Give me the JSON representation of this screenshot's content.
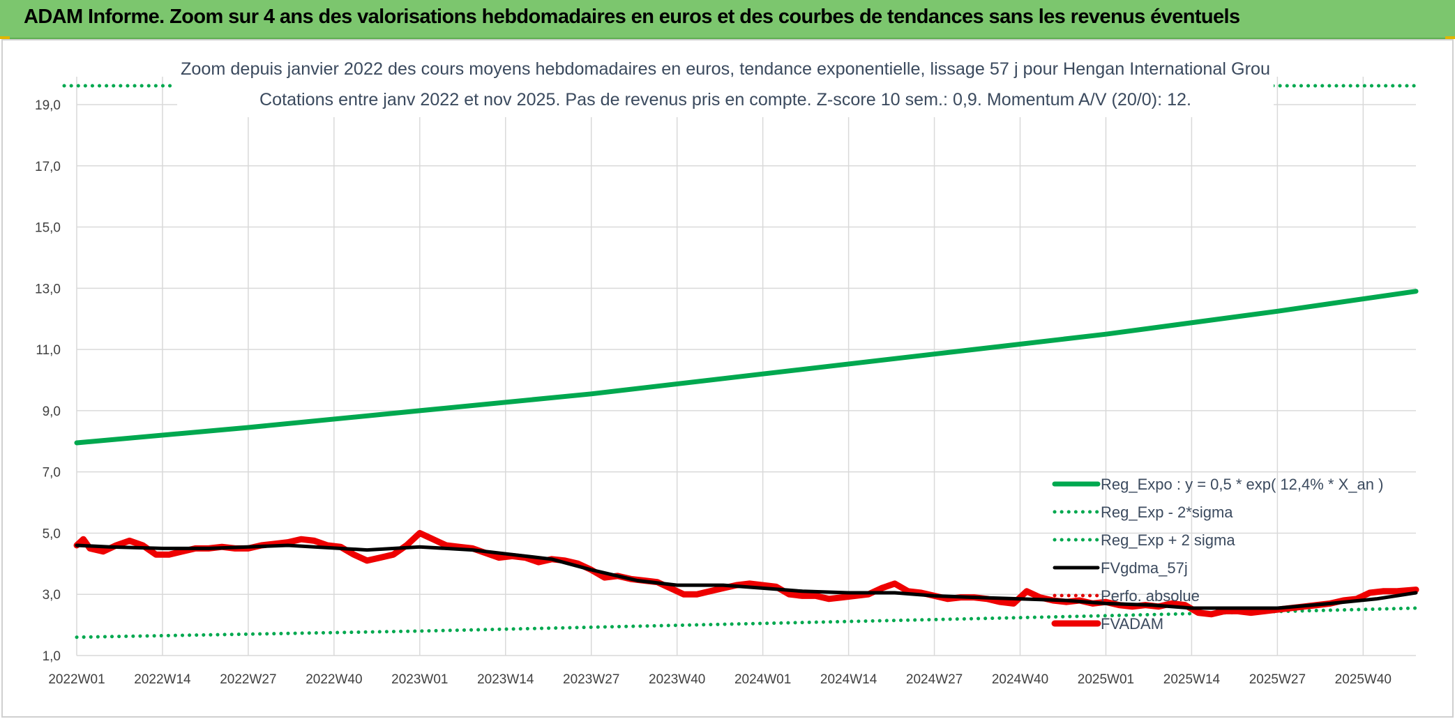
{
  "banner": {
    "title": "ADAM Informe. Zoom sur 4 ans des valorisations hebdomadaires en euros et des courbes de tendances sans les revenus éventuels"
  },
  "colors": {
    "banner_bg": "#7cc66e",
    "reg_expo": "#00a84f",
    "sigma_lines": "#00a84f",
    "fvgdma": "#000000",
    "perfo": "#e00000",
    "fvadam": "#ee0000",
    "grid": "#d9d9d9"
  },
  "chart_data": {
    "type": "line",
    "title": "Zoom depuis janvier 2022 des cours moyens hebdomadaires en euros, tendance exponentielle, lissage 57 j pour Hengan International Grou",
    "subtitle": "Cotations entre janv 2022 et nov 2025. Pas de revenus pris en compte. Z-score 10 sem.: 0,9. Momentum A/V (20/0): 12.",
    "xlabel": "",
    "ylabel": "",
    "ylim": [
      1.0,
      19.0
    ],
    "yticks": [
      "1,0",
      "3,0",
      "5,0",
      "7,0",
      "9,0",
      "11,0",
      "13,0",
      "15,0",
      "17,0",
      "19,0"
    ],
    "ytick_values": [
      1,
      3,
      5,
      7,
      9,
      11,
      13,
      15,
      17,
      19
    ],
    "xticks": [
      "2022W01",
      "2022W14",
      "2022W27",
      "2022W40",
      "2023W01",
      "2023W14",
      "2023W27",
      "2023W40",
      "2024W01",
      "2024W14",
      "2024W27",
      "2024W40",
      "2025W01",
      "2025W14",
      "2025W27",
      "2025W40"
    ],
    "xtick_weeks": [
      0,
      13,
      26,
      39,
      52,
      65,
      78,
      91,
      104,
      117,
      130,
      143,
      156,
      169,
      182,
      195
    ],
    "x_count": 204,
    "grid": true,
    "legend_position": "bottom-right",
    "series": [
      {
        "name": "Reg_Expo : y = 0,5 * exp( 12,4% *  X_an )",
        "style": "solid-thick",
        "color": "#00a84f",
        "x": [
          0,
          26,
          52,
          78,
          104,
          130,
          156,
          182,
          203
        ],
        "values": [
          7.95,
          8.45,
          9.0,
          9.55,
          10.2,
          10.85,
          11.5,
          12.25,
          12.9
        ]
      },
      {
        "name": "Reg_Exp - 2*sigma",
        "style": "dotted",
        "color": "#00a84f",
        "x": [
          0,
          52,
          104,
          156,
          203
        ],
        "values": [
          1.6,
          1.8,
          2.05,
          2.3,
          2.55
        ]
      },
      {
        "name": "Reg_Exp + 2 sigma",
        "style": "dotted",
        "color": "#00a84f",
        "x": [
          0,
          203
        ],
        "values": [
          20.0,
          20.0
        ]
      },
      {
        "name": "FVgdma_57j",
        "style": "solid",
        "color": "#000000",
        "x": [
          0,
          5,
          13,
          20,
          26,
          32,
          36,
          44,
          52,
          60,
          66,
          72,
          78,
          85,
          91,
          98,
          104,
          110,
          117,
          124,
          130,
          136,
          143,
          150,
          156,
          163,
          169,
          176,
          182,
          190,
          197,
          203
        ],
        "values": [
          4.6,
          4.55,
          4.5,
          4.5,
          4.55,
          4.6,
          4.55,
          4.45,
          4.55,
          4.45,
          4.3,
          4.15,
          3.8,
          3.45,
          3.3,
          3.3,
          3.2,
          3.1,
          3.05,
          3.05,
          2.95,
          2.9,
          2.85,
          2.8,
          2.7,
          2.65,
          2.55,
          2.55,
          2.55,
          2.7,
          2.85,
          3.05
        ]
      },
      {
        "name": "Perfo. absolue",
        "style": "dotted",
        "color": "#e00000",
        "x": [],
        "values": []
      },
      {
        "name": "FVADAM",
        "style": "solid-thick",
        "color": "#ee0000",
        "x": [
          0,
          1,
          2,
          4,
          6,
          8,
          10,
          12,
          14,
          16,
          18,
          20,
          22,
          24,
          26,
          28,
          30,
          32,
          34,
          36,
          38,
          40,
          42,
          44,
          46,
          48,
          50,
          52,
          54,
          56,
          58,
          60,
          62,
          64,
          66,
          68,
          70,
          72,
          74,
          76,
          78,
          80,
          82,
          84,
          86,
          88,
          90,
          92,
          94,
          96,
          98,
          100,
          102,
          104,
          106,
          108,
          110,
          112,
          114,
          116,
          118,
          120,
          122,
          124,
          126,
          128,
          130,
          132,
          134,
          136,
          138,
          140,
          142,
          144,
          146,
          148,
          150,
          152,
          154,
          156,
          158,
          160,
          162,
          164,
          166,
          168,
          170,
          172,
          174,
          176,
          178,
          180,
          182,
          184,
          186,
          188,
          190,
          192,
          194,
          196,
          198,
          200,
          203
        ],
        "values": [
          4.6,
          4.8,
          4.5,
          4.4,
          4.6,
          4.75,
          4.6,
          4.3,
          4.3,
          4.4,
          4.5,
          4.5,
          4.55,
          4.5,
          4.5,
          4.6,
          4.65,
          4.7,
          4.8,
          4.75,
          4.6,
          4.55,
          4.3,
          4.1,
          4.2,
          4.3,
          4.6,
          5.0,
          4.8,
          4.6,
          4.55,
          4.5,
          4.35,
          4.2,
          4.25,
          4.2,
          4.05,
          4.15,
          4.1,
          4.0,
          3.8,
          3.55,
          3.6,
          3.5,
          3.45,
          3.4,
          3.2,
          3.0,
          3.0,
          3.1,
          3.2,
          3.3,
          3.35,
          3.3,
          3.25,
          3.0,
          2.95,
          2.95,
          2.85,
          2.9,
          2.95,
          3.0,
          3.2,
          3.35,
          3.1,
          3.05,
          2.95,
          2.85,
          2.9,
          2.9,
          2.85,
          2.75,
          2.7,
          3.1,
          2.9,
          2.8,
          2.75,
          2.8,
          2.7,
          2.75,
          2.65,
          2.6,
          2.65,
          2.6,
          2.7,
          2.65,
          2.4,
          2.35,
          2.45,
          2.45,
          2.4,
          2.45,
          2.5,
          2.55,
          2.6,
          2.65,
          2.7,
          2.8,
          2.85,
          3.05,
          3.1,
          3.1,
          3.15
        ]
      }
    ]
  }
}
